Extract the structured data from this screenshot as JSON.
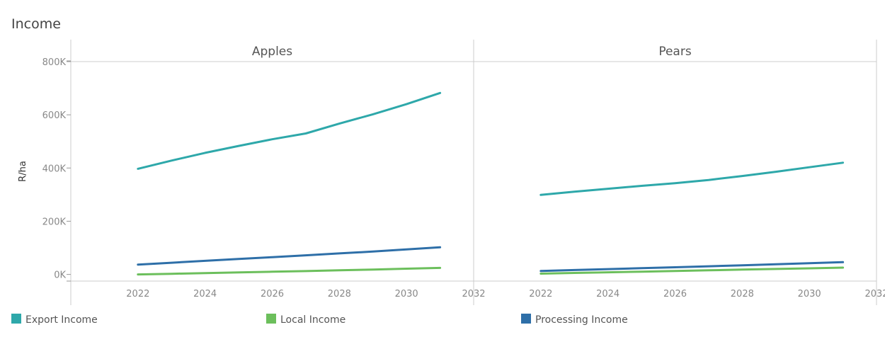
{
  "chart_data": {
    "type": "line",
    "title": "Income",
    "ylabel": "R/ha",
    "xlabel": "",
    "xlim": [
      2020,
      2032
    ],
    "ylim": [
      -25000,
      800000
    ],
    "x_ticks": [
      2022,
      2024,
      2026,
      2028,
      2030,
      2032
    ],
    "y_ticks": [
      0,
      200000,
      400000,
      600000,
      800000
    ],
    "y_tick_labels": [
      "0K",
      "200K",
      "400K",
      "600K",
      "800K"
    ],
    "grid": false,
    "legend_position": "bottom",
    "colors": {
      "Export Income": "#2ea8aa",
      "Local Income": "#6cbf5c",
      "Processing Income": "#2e6fa8"
    },
    "legend": [
      "Export Income",
      "Local Income",
      "Processing Income"
    ],
    "panels": [
      {
        "title": "Apples",
        "x": [
          2022,
          2023,
          2024,
          2025,
          2026,
          2027,
          2028,
          2029,
          2030,
          2031
        ],
        "series": [
          {
            "name": "Export Income",
            "values": [
              397000,
              428000,
              457000,
              483000,
              508000,
              530000,
              567000,
              602000,
              640000,
              682000
            ]
          },
          {
            "name": "Local Income",
            "values": [
              0,
              2500,
              5000,
              7500,
              10000,
              12500,
              15500,
              18500,
              21500,
              24500
            ]
          },
          {
            "name": "Processing Income",
            "values": [
              37000,
              44000,
              51000,
              58000,
              65000,
              72000,
              79000,
              86000,
              94000,
              102000
            ]
          }
        ]
      },
      {
        "title": "Pears",
        "x": [
          2022,
          2023,
          2024,
          2025,
          2026,
          2027,
          2028,
          2029,
          2030,
          2031
        ],
        "series": [
          {
            "name": "Export Income",
            "values": [
              299000,
              311000,
              322000,
              333000,
              343000,
              355000,
              370000,
              386000,
              403000,
              420000
            ]
          },
          {
            "name": "Local Income",
            "values": [
              3000,
              5500,
              8000,
              10500,
              13000,
              15500,
              18000,
              20500,
              23000,
              25500
            ]
          },
          {
            "name": "Processing Income",
            "values": [
              13000,
              16500,
              20000,
              23500,
              27000,
              30500,
              34000,
              38000,
              42000,
              46000
            ]
          }
        ]
      }
    ]
  }
}
